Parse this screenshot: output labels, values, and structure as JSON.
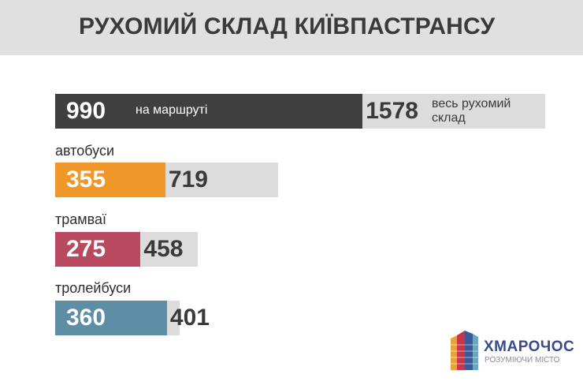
{
  "title": "РУХОМИЙ СКЛАД КИЇВПАСТРАНСУ",
  "colors": {
    "total": "#dcdcdc",
    "all": "#3f3f3f",
    "buses": "#ef9729",
    "trams": "#b9495f",
    "trolleybuses": "#5d8ea6"
  },
  "chart_data": {
    "type": "bar",
    "orientation": "horizontal",
    "stacked": "overlay",
    "categories": [
      "",
      "автобуси",
      "трамваї",
      "тролейбуси"
    ],
    "series": [
      {
        "name": "на маршруті",
        "values": [
          990,
          355,
          275,
          360
        ]
      },
      {
        "name": "весь рухомий склад",
        "values": [
          1578,
          719,
          458,
          401
        ]
      }
    ],
    "annotations": {
      "active_label": "на маршруті",
      "total_label": "весь рухомий склад"
    }
  },
  "logo": {
    "name": "ХМАРОЧОС",
    "tagline": "РОЗУМІЮЧИ МІСТО",
    "icon": "skyscraper-icon"
  }
}
